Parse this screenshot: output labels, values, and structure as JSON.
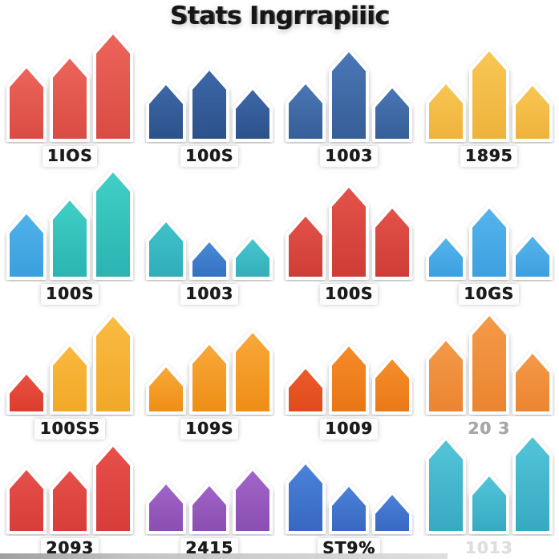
{
  "title": "Stats Ingrrapiiic",
  "colors": {
    "background": "#ffffff",
    "title_text": "#161616",
    "label_text": "#1b1b1b"
  },
  "chart_data": [
    {
      "type": "bar",
      "label": "1IOS",
      "label_opacity": 1,
      "values": [
        93,
        105,
        135
      ],
      "bar_colors": [
        [
          "#ec655b",
          "#d94b42"
        ],
        [
          "#ec655b",
          "#d94b42"
        ],
        [
          "#ec655b",
          "#d94b42"
        ]
      ]
    },
    {
      "type": "bar",
      "label": "100S",
      "label_opacity": 1,
      "values": [
        72,
        90,
        66
      ],
      "bar_colors": [
        [
          "#3d68a8",
          "#2c5189"
        ],
        [
          "#3d68a8",
          "#2c5189"
        ],
        [
          "#3d68a8",
          "#2c5189"
        ]
      ]
    },
    {
      "type": "bar",
      "label": "1003",
      "label_opacity": 1,
      "values": [
        73,
        113,
        68
      ],
      "bar_colors": [
        [
          "#4a78b6",
          "#365d96"
        ],
        [
          "#4a78b6",
          "#365d96"
        ],
        [
          "#4a78b6",
          "#365d96"
        ]
      ]
    },
    {
      "type": "bar",
      "label": "1895",
      "label_opacity": 1,
      "values": [
        73,
        114,
        71
      ],
      "bar_colors": [
        [
          "#f8c755",
          "#eeb23a"
        ],
        [
          "#f8c755",
          "#eeb23a"
        ],
        [
          "#f8c755",
          "#eeb23a"
        ]
      ]
    },
    {
      "type": "bar",
      "label": "100S",
      "label_opacity": 1,
      "values": [
        83,
        100,
        135
      ],
      "bar_colors": [
        [
          "#4fb2ea",
          "#3b9fdd"
        ],
        [
          "#40d0c6",
          "#2bb3b1"
        ],
        [
          "#40d0c6",
          "#2bb3b1"
        ]
      ]
    },
    {
      "type": "bar",
      "label": "1003",
      "label_opacity": 1,
      "values": [
        73,
        48,
        52
      ],
      "bar_colors": [
        [
          "#41c3cb",
          "#2fadb9"
        ],
        [
          "#4a8ad9",
          "#346fc0"
        ],
        [
          "#48c6cd",
          "#32aeb9"
        ]
      ]
    },
    {
      "type": "bar",
      "label": "100S",
      "label_opacity": 1,
      "values": [
        80,
        116,
        90
      ],
      "bar_colors": [
        [
          "#e35349",
          "#ce3c36"
        ],
        [
          "#e35349",
          "#ce3c36"
        ],
        [
          "#e35349",
          "#ce3c36"
        ]
      ]
    },
    {
      "type": "bar",
      "label": "10GS",
      "label_opacity": 1,
      "values": [
        53,
        90,
        55
      ],
      "bar_colors": [
        [
          "#55b5ec",
          "#3c9fe0"
        ],
        [
          "#55b5ec",
          "#3c9fe0"
        ],
        [
          "#55b5ec",
          "#3c9fe0"
        ]
      ]
    },
    {
      "type": "bar",
      "label": "100S5",
      "label_opacity": 1,
      "values": [
        51,
        86,
        123
      ],
      "bar_colors": [
        [
          "#ea5140",
          "#db3c2d"
        ],
        [
          "#f9b93f",
          "#f2a826"
        ],
        [
          "#f9bc43",
          "#f1a727"
        ]
      ]
    },
    {
      "type": "bar",
      "label": "109S",
      "label_opacity": 1,
      "values": [
        60,
        88,
        103
      ],
      "bar_colors": [
        [
          "#f8a93c",
          "#ee8d13"
        ],
        [
          "#f8a93c",
          "#ee8d13"
        ],
        [
          "#f8a93c",
          "#ee8d13"
        ]
      ]
    },
    {
      "type": "bar",
      "label": "1009",
      "label_opacity": 1,
      "values": [
        58,
        86,
        70
      ],
      "bar_colors": [
        [
          "#ec5c29",
          "#e04a1b"
        ],
        [
          "#f68c29",
          "#e97513"
        ],
        [
          "#f68e2c",
          "#ea7816"
        ]
      ]
    },
    {
      "type": "bar",
      "label": "20 3",
      "label_opacity": 0.38,
      "values": [
        93,
        124,
        77
      ],
      "bar_colors": [
        [
          "#f49a49",
          "#eb8430"
        ],
        [
          "#f49a49",
          "#eb8430"
        ],
        [
          "#f49a49",
          "#eb8430"
        ]
      ]
    },
    {
      "type": "bar",
      "label": "2093",
      "label_opacity": 1,
      "values": [
        81,
        80,
        110
      ],
      "bar_colors": [
        [
          "#e7504b",
          "#d73c39"
        ],
        [
          "#e7504b",
          "#d73c39"
        ],
        [
          "#e7504b",
          "#d73c39"
        ]
      ]
    },
    {
      "type": "bar",
      "label": "2415",
      "label_opacity": 1,
      "values": [
        63,
        61,
        80
      ],
      "bar_colors": [
        [
          "#a166c9",
          "#8a4db1"
        ],
        [
          "#a166c9",
          "#8a4db1"
        ],
        [
          "#a166c9",
          "#8a4db1"
        ]
      ]
    },
    {
      "type": "bar",
      "label": "ST9%",
      "label_opacity": 1,
      "values": [
        88,
        60,
        50
      ],
      "bar_colors": [
        [
          "#4c83da",
          "#3767c1"
        ],
        [
          "#4c83da",
          "#3767c1"
        ],
        [
          "#4c83da",
          "#3767c1"
        ]
      ]
    },
    {
      "type": "bar",
      "label": "1013",
      "label_opacity": 0.14,
      "values": [
        118,
        73,
        122
      ],
      "bar_colors": [
        [
          "#54c5d9",
          "#36a9c1"
        ],
        [
          "#54c5d9",
          "#36a9c1"
        ],
        [
          "#54c5d9",
          "#36a9c1"
        ]
      ]
    }
  ]
}
